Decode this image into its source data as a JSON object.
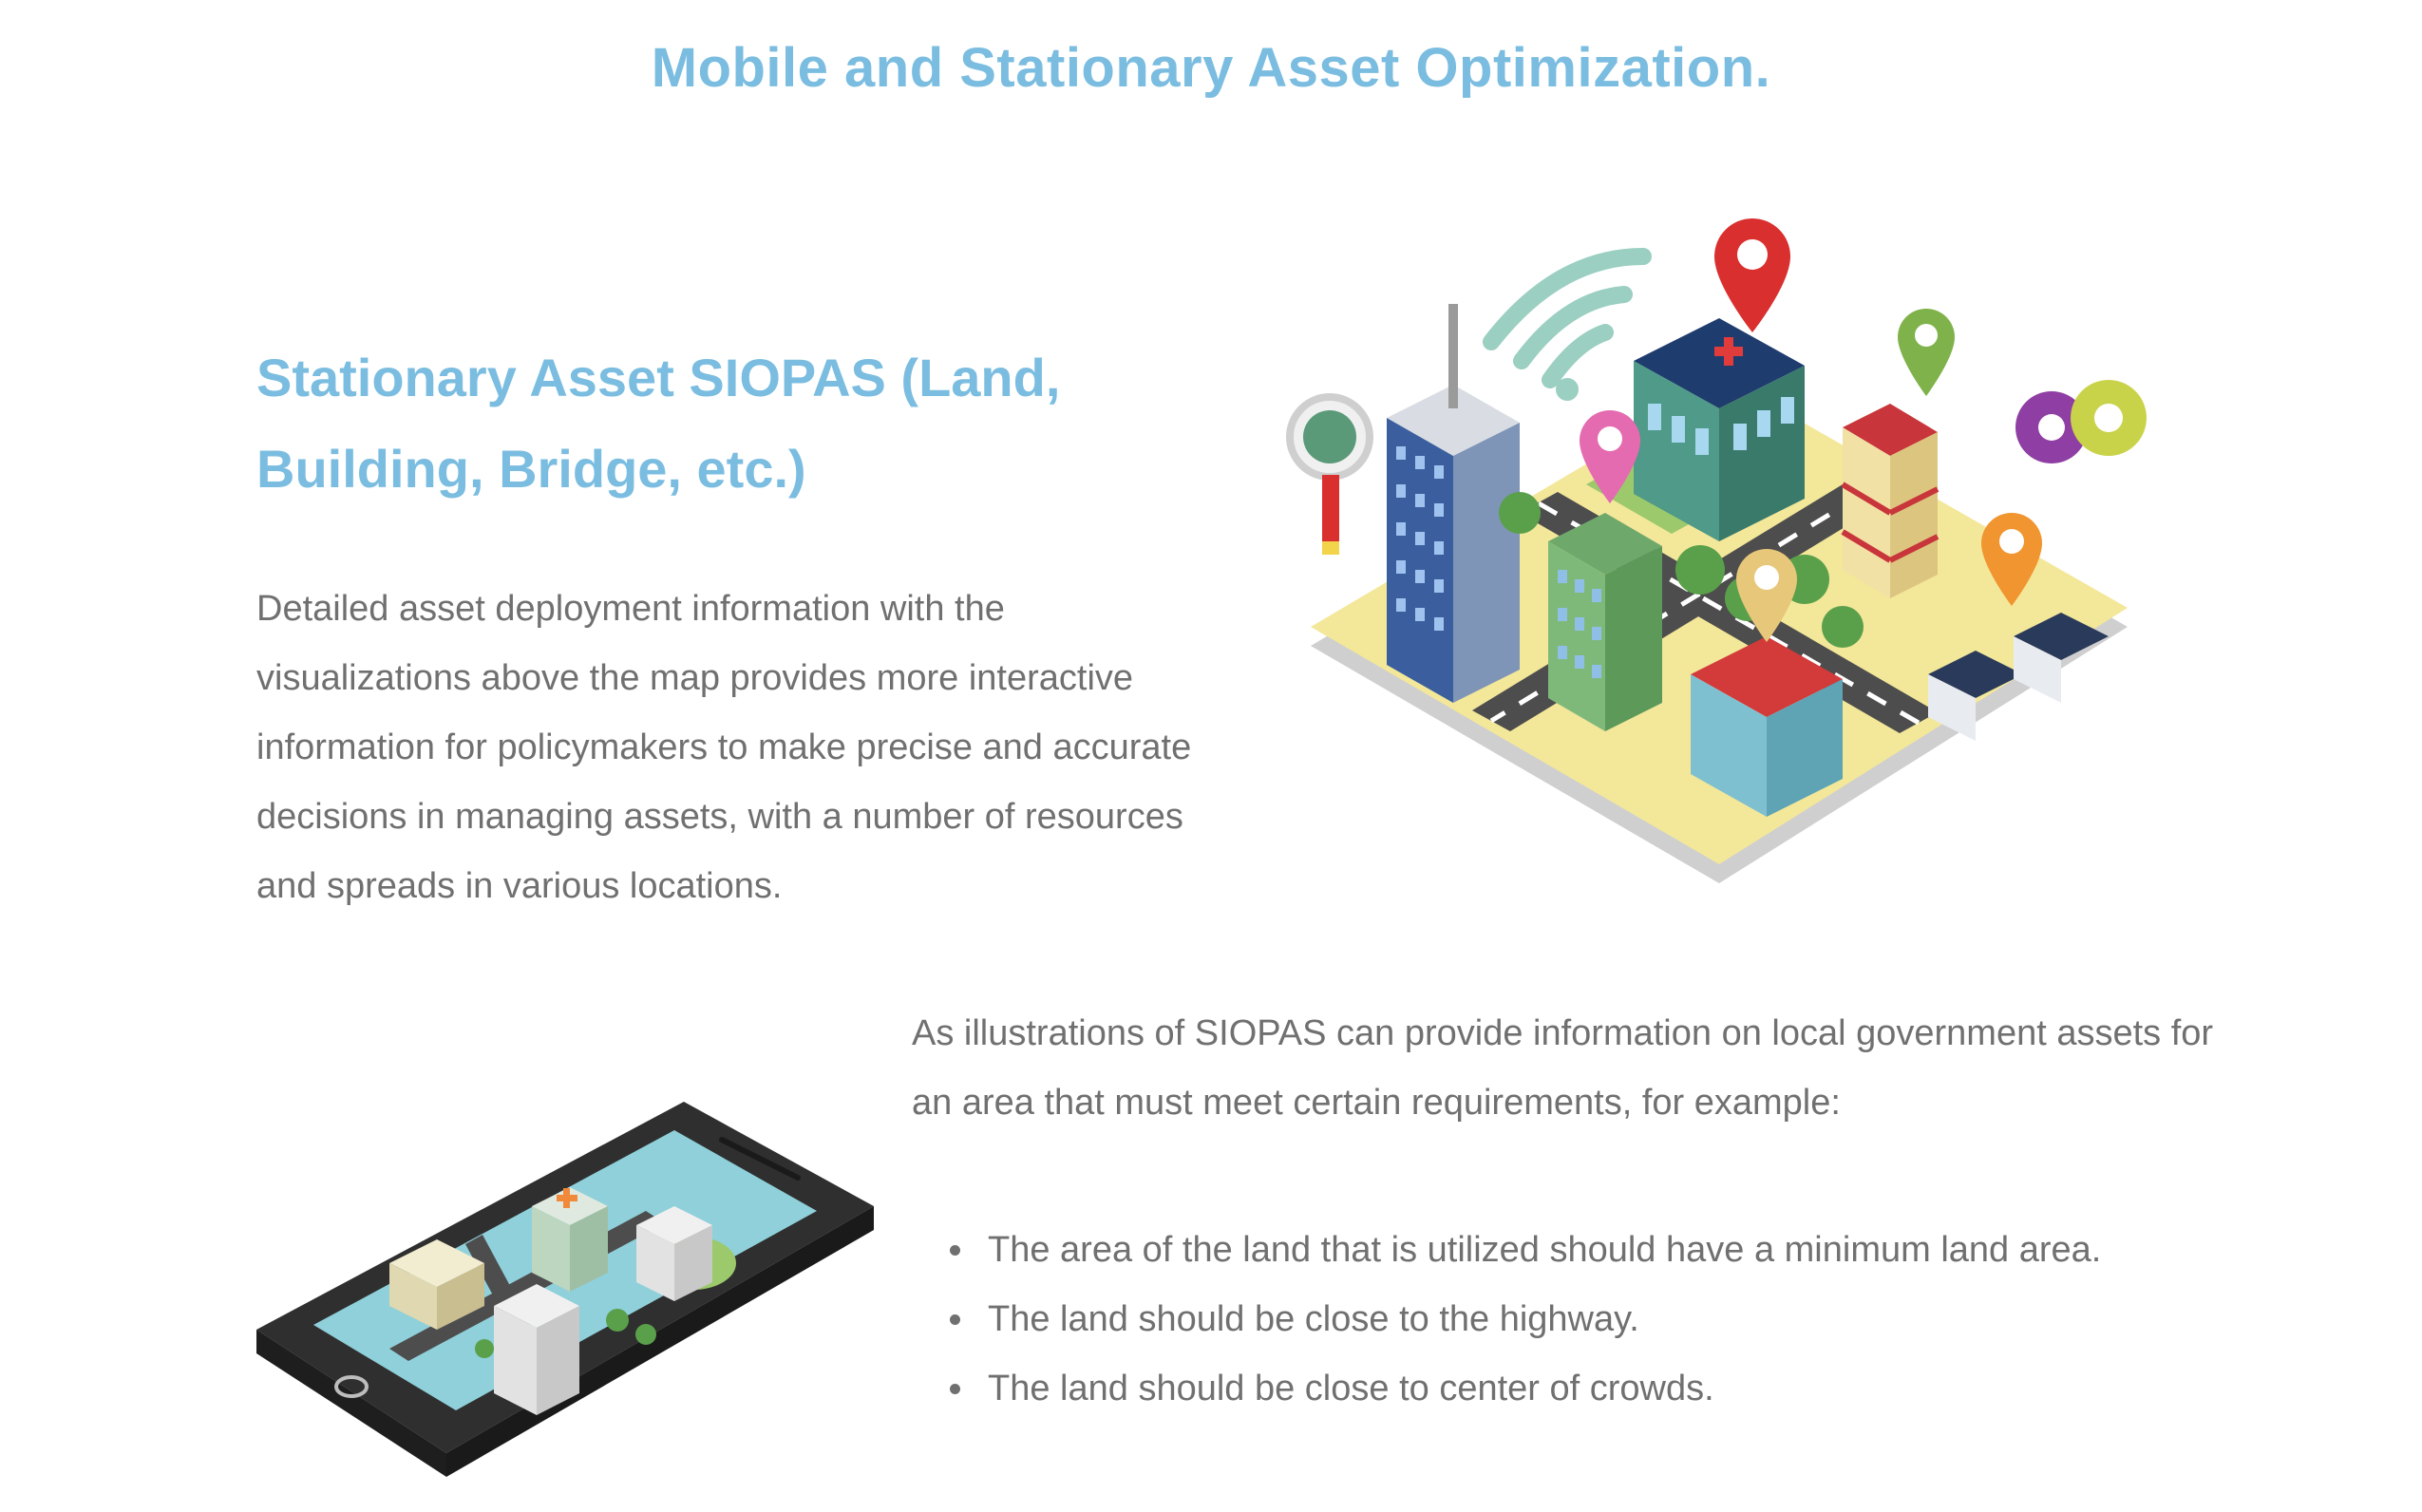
{
  "page": {
    "title": "Mobile and Stationary Asset Optimization."
  },
  "section": {
    "title_line1": "Stationary Asset SIOPAS (Land,",
    "title_line2": "Building, Bridge, etc.)",
    "description": "Detailed asset deployment information with the visualizations above the map provides more interactive information for policymakers to make precise and accurate decisions in managing assets, with a number of resources and spreads in various locations."
  },
  "requirements": {
    "intro": "As illustrations of SIOPAS can provide information on local government assets for an area that must meet certain requirements, for example:",
    "items": [
      "The area of the land that is utilized should have a minimum land area.",
      "The land should be close to the highway.",
      "The land should be close to center of crowds."
    ]
  },
  "colors": {
    "heading": "#7bbde0",
    "body_text": "#707070",
    "background": "#ffffff"
  },
  "icons": {
    "city": "isometric-city-map-illustration",
    "phone": "smartphone-city-map-illustration",
    "pin": "map-pin-icon",
    "wifi": "wifi-icon",
    "search": "magnifier-icon",
    "gear": "gear-icon"
  }
}
